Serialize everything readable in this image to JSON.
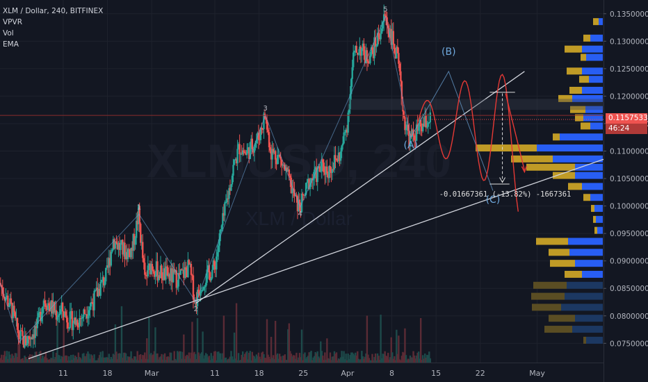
{
  "legend": {
    "title": "XLM / Dollar, 240, BITFINEX",
    "indicators": [
      "VPVR",
      "Vol",
      "EMA"
    ]
  },
  "watermark": {
    "symbol": "XLMUSD, 240",
    "name": "XLM / Dollar"
  },
  "chart_data": {
    "type": "candlestick",
    "symbol": "XLM / Dollar",
    "interval": "240",
    "exchange": "BITFINEX",
    "ylim": [
      0.0715,
      0.1375
    ],
    "y_ticks": [
      "0.13500000",
      "0.13000000",
      "0.12500000",
      "0.12000000",
      "0.11500000",
      "0.11000000",
      "0.10500000",
      "0.10000000",
      "0.09500000",
      "0.09000000",
      "0.08500000",
      "0.08000000",
      "0.07500000"
    ],
    "y_tick_values": [
      0.135,
      0.13,
      0.125,
      0.12,
      0.115,
      0.11,
      0.105,
      0.1,
      0.095,
      0.09,
      0.085,
      0.08,
      0.075
    ],
    "x_ticks": [
      "11",
      "18",
      "Mar",
      "11",
      "18",
      "25",
      "Apr",
      "8",
      "15",
      "22",
      "May"
    ],
    "x_tick_days": [
      10,
      17,
      24,
      34,
      41,
      48,
      55,
      62,
      69,
      76,
      85
    ],
    "x_start": "Feb 1",
    "price_path": [
      [
        0,
        0.086
      ],
      [
        2,
        0.081
      ],
      [
        3,
        0.0765
      ],
      [
        4,
        0.0752
      ],
      [
        6,
        0.078
      ],
      [
        7,
        0.0832
      ],
      [
        8,
        0.0818
      ],
      [
        9,
        0.0805
      ],
      [
        10,
        0.081
      ],
      [
        11,
        0.0792
      ],
      [
        12,
        0.079
      ],
      [
        13,
        0.0798
      ],
      [
        14,
        0.0815
      ],
      [
        15,
        0.083
      ],
      [
        16,
        0.0855
      ],
      [
        17,
        0.0875
      ],
      [
        18,
        0.094
      ],
      [
        19,
        0.0925
      ],
      [
        20,
        0.0915
      ],
      [
        21,
        0.0922
      ],
      [
        22,
        0.0985
      ],
      [
        23,
        0.0865
      ],
      [
        24,
        0.0895
      ],
      [
        25,
        0.088
      ],
      [
        26,
        0.0875
      ],
      [
        27,
        0.0872
      ],
      [
        28,
        0.0868
      ],
      [
        29,
        0.0875
      ],
      [
        30,
        0.089
      ],
      [
        31,
        0.0825
      ],
      [
        32,
        0.0862
      ],
      [
        33,
        0.0875
      ],
      [
        34,
        0.0888
      ],
      [
        35,
        0.095
      ],
      [
        36,
        0.101
      ],
      [
        37,
        0.107
      ],
      [
        38,
        0.1108
      ],
      [
        39,
        0.1095
      ],
      [
        40,
        0.111
      ],
      [
        41,
        0.1125
      ],
      [
        42,
        0.1165
      ],
      [
        43,
        0.1098
      ],
      [
        44,
        0.1092
      ],
      [
        45,
        0.107
      ],
      [
        46,
        0.104
      ],
      [
        47,
        0.1005
      ],
      [
        47.5,
        0.0998
      ],
      [
        48,
        0.101
      ],
      [
        49,
        0.1045
      ],
      [
        50,
        0.1055
      ],
      [
        51,
        0.107
      ],
      [
        52,
        0.1065
      ],
      [
        53,
        0.108
      ],
      [
        54,
        0.1095
      ],
      [
        55,
        0.115
      ],
      [
        56,
        0.127
      ],
      [
        57,
        0.129
      ],
      [
        58,
        0.127
      ],
      [
        59,
        0.128
      ],
      [
        60,
        0.131
      ],
      [
        61,
        0.1345
      ],
      [
        62,
        0.131
      ],
      [
        63,
        0.1265
      ],
      [
        64,
        0.116
      ],
      [
        65,
        0.112
      ],
      [
        66,
        0.1135
      ],
      [
        67,
        0.1145
      ],
      [
        68,
        0.1158
      ]
    ],
    "current_price": "0.11575337",
    "countdown": "46:24",
    "waves": [
      {
        "label": "1",
        "day": 22,
        "price": 0.0985
      },
      {
        "label": "2",
        "day": 31,
        "price": 0.0825
      },
      {
        "label": "3",
        "day": 42,
        "price": 0.1165
      },
      {
        "label": "4",
        "day": 47.5,
        "price": 0.0998
      },
      {
        "label": "5",
        "day": 61,
        "price": 0.1345
      }
    ],
    "abc": [
      {
        "label": "(A)",
        "day": 65,
        "price": 0.1125
      },
      {
        "label": "(B)",
        "day": 71,
        "price": 0.1265
      },
      {
        "label": "(C)",
        "day": 78,
        "price": 0.1026
      }
    ],
    "measurement": {
      "text": "-0.01667361 (-13.82%) -1667361"
    },
    "volume_profile_note": "VPVR horizontal volume histogram on right side"
  },
  "colors": {
    "background": "#131722",
    "up": "#26a69a",
    "down": "#ef5350",
    "grid": "#1e222d",
    "vp_up": "#2962ff",
    "vp_down": "#c9a227",
    "forecast": "#e53935",
    "trendline": "#d1d4dc",
    "wave": "#6fa8dc"
  }
}
